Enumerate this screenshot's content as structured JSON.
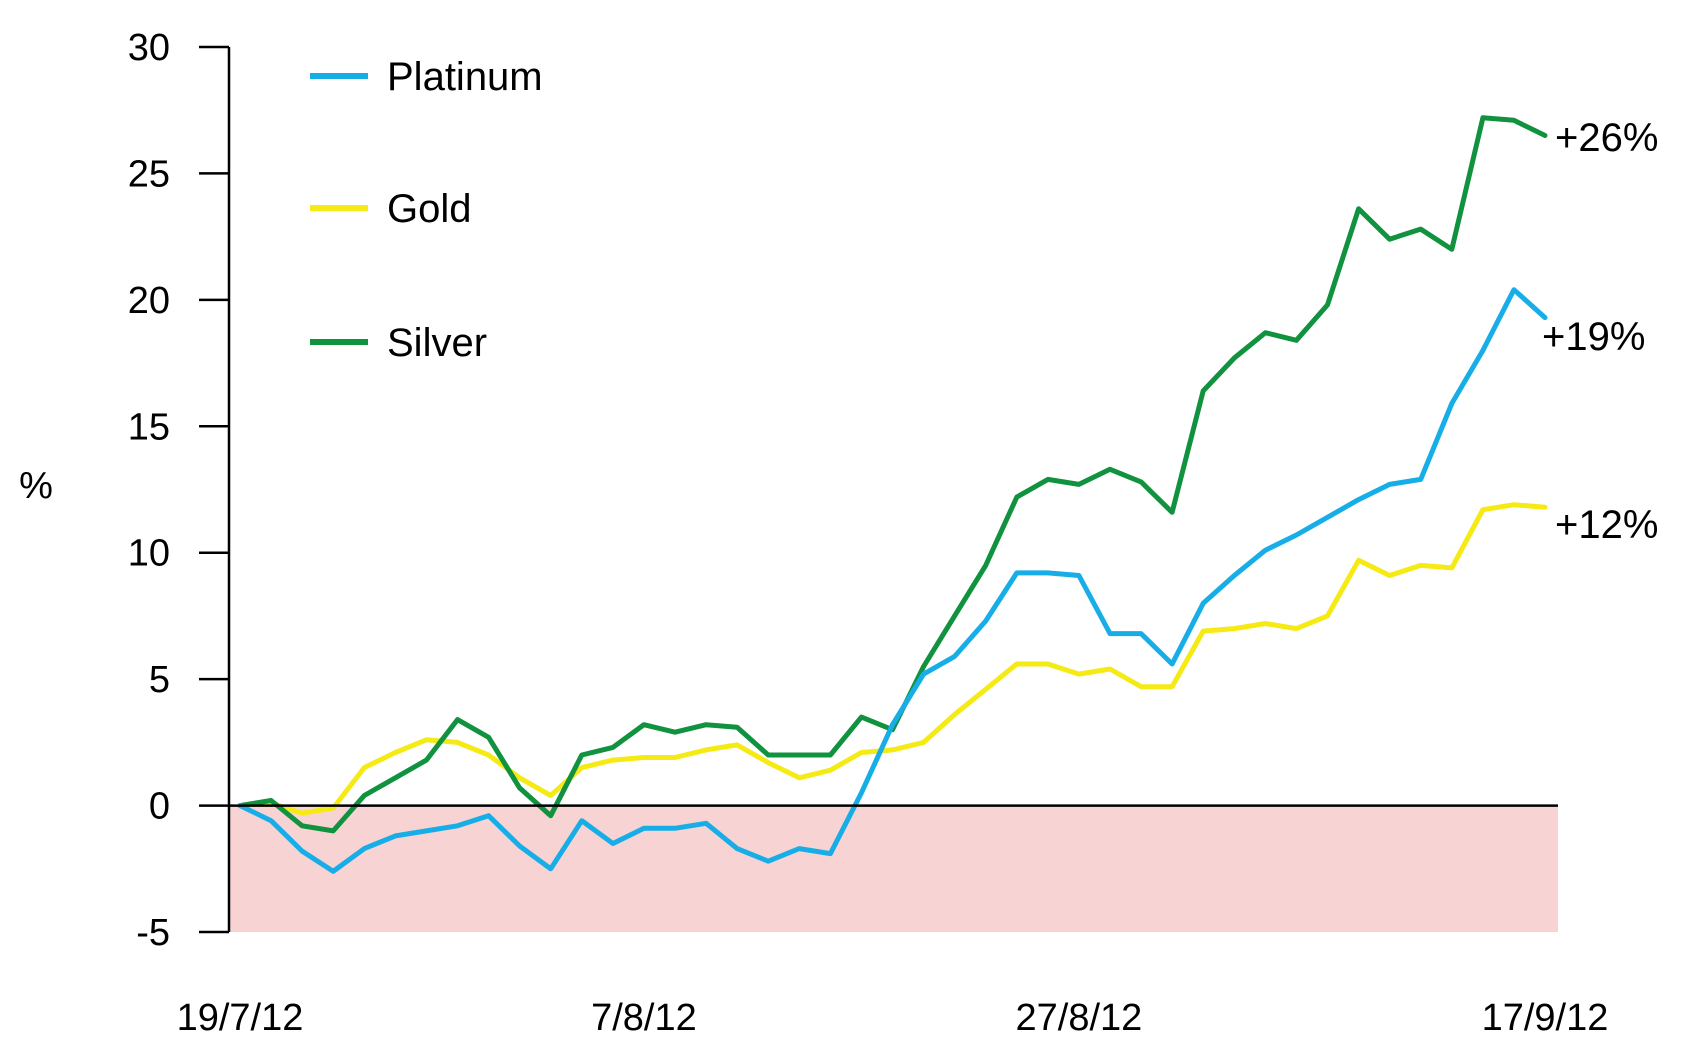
{
  "chart_data": {
    "type": "line",
    "title": "",
    "xlabel": "",
    "ylabel": "%",
    "ylim": [
      -5,
      30
    ],
    "yticks": [
      "30",
      "25",
      "20",
      "15",
      "10",
      "5",
      "0",
      "-5"
    ],
    "ytick_values": [
      30,
      25,
      20,
      15,
      10,
      5,
      0,
      -5
    ],
    "xticks": [
      {
        "label": "19/7/12",
        "index": 0
      },
      {
        "label": "7/8/12",
        "index": 13
      },
      {
        "label": "27/8/12",
        "index": 27
      },
      {
        "label": "17/9/12",
        "index": 42
      }
    ],
    "negative_region": {
      "from": -5,
      "to": 0,
      "color": "#f8d3d4"
    },
    "legend_position": "top-left",
    "grid": false,
    "series": [
      {
        "name": "Platinum",
        "color": "#17aee8",
        "end_label": "+19%",
        "values": [
          0,
          -0.6,
          -1.8,
          -2.6,
          -1.7,
          -1.2,
          -1.0,
          -0.8,
          -0.4,
          -1.6,
          -2.5,
          -0.6,
          -1.5,
          -0.9,
          -0.9,
          -0.7,
          -1.7,
          -2.2,
          -1.7,
          -1.9,
          0.5,
          3.2,
          5.2,
          5.9,
          7.3,
          9.2,
          9.2,
          9.1,
          6.8,
          6.8,
          5.6,
          8.0,
          9.1,
          10.1,
          10.7,
          11.4,
          12.1,
          12.7,
          12.9,
          15.9,
          18.0,
          20.4,
          19.3
        ]
      },
      {
        "name": "Gold",
        "color": "#f5ea14",
        "end_label": "+12%",
        "values": [
          0,
          0.1,
          -0.3,
          -0.1,
          1.5,
          2.1,
          2.6,
          2.5,
          2.0,
          1.1,
          0.4,
          1.5,
          1.8,
          1.9,
          1.9,
          2.2,
          2.4,
          1.7,
          1.1,
          1.4,
          2.1,
          2.2,
          2.5,
          3.6,
          4.6,
          5.6,
          5.6,
          5.2,
          5.4,
          4.7,
          4.7,
          6.9,
          7.0,
          7.2,
          7.0,
          7.5,
          9.7,
          9.1,
          9.5,
          9.4,
          11.7,
          11.9,
          11.8
        ]
      },
      {
        "name": "Silver",
        "color": "#10923f",
        "end_label": "+26%",
        "values": [
          0,
          0.2,
          -0.8,
          -1.0,
          0.4,
          1.1,
          1.8,
          3.4,
          2.7,
          0.7,
          -0.4,
          2.0,
          2.3,
          3.2,
          2.9,
          3.2,
          3.1,
          2.0,
          2.0,
          2.0,
          3.5,
          3.0,
          5.5,
          7.5,
          9.5,
          12.2,
          12.9,
          12.7,
          13.3,
          12.8,
          11.6,
          16.4,
          17.7,
          18.7,
          18.4,
          19.8,
          23.6,
          22.4,
          22.8,
          22.0,
          27.2,
          27.1,
          26.5
        ]
      }
    ]
  }
}
